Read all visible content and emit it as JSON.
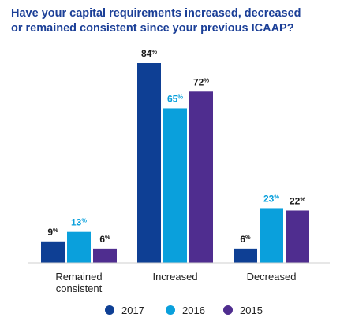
{
  "chart_data": {
    "type": "bar",
    "title_lines": [
      "Have your capital requirements increased, decreased",
      "or remained consistent since your previous ICAAP?"
    ],
    "categories": [
      [
        "Remained",
        "consistent"
      ],
      [
        "Increased"
      ],
      [
        "Decreased"
      ]
    ],
    "series": [
      {
        "name": "2017",
        "color": "#0e3f94",
        "values": [
          9,
          84,
          6
        ]
      },
      {
        "name": "2016",
        "color": "#0aa0dc",
        "values": [
          13,
          65,
          23
        ]
      },
      {
        "name": "2015",
        "color": "#4f2d8f",
        "values": [
          6,
          72,
          22
        ]
      }
    ],
    "value_suffix": "%",
    "ylim": [
      0,
      100
    ],
    "grid": false,
    "legend_position": "bottom"
  }
}
